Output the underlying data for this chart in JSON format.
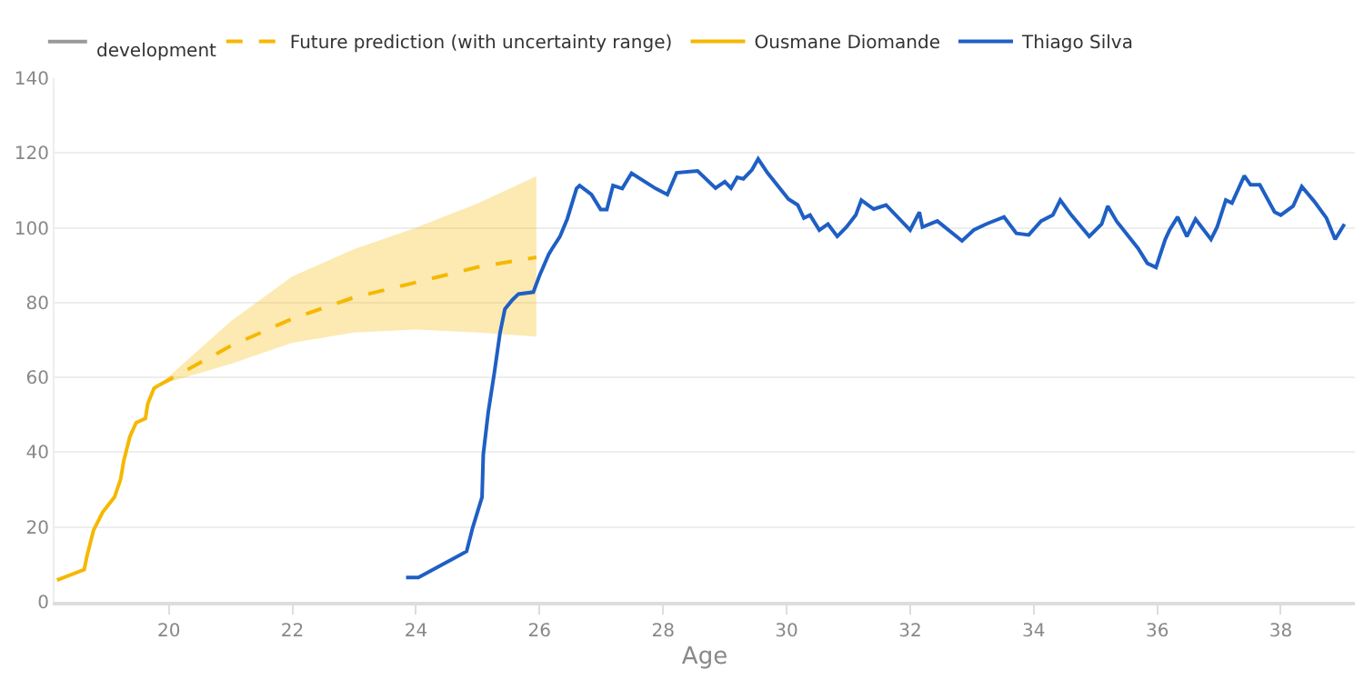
{
  "chart_data": {
    "type": "line",
    "xlabel": "Age",
    "annotations": [
      "development"
    ],
    "xlim": [
      18.15,
      39.2
    ],
    "ylim": [
      0,
      140
    ],
    "xticks": [
      20,
      22,
      24,
      26,
      28,
      30,
      32,
      34,
      36,
      38
    ],
    "yticks": [
      0,
      20,
      40,
      60,
      80,
      100,
      120,
      140
    ],
    "grid": "y",
    "legend": "top left",
    "line_style": "solid",
    "marker": "none",
    "series": [
      {
        "name": "Future prediction (with uncertainty range)",
        "color": "#f5b800",
        "line_style": "dashed",
        "x": [
          19.84,
          21,
          22,
          23,
          24,
          25,
          25.95
        ],
        "values": [
          57.9,
          68.4,
          75.7,
          81.4,
          85.4,
          89.5,
          92.1
        ],
        "lower": [
          57.9,
          63.6,
          69.3,
          72,
          72.8,
          72,
          70.9
        ],
        "upper": [
          57.9,
          75,
          87,
          94.3,
          100,
          106.5,
          113.8
        ]
      },
      {
        "name": "Ousmane Diomande",
        "color": "#f5b800",
        "x": [
          18.19,
          18.63,
          18.68,
          18.78,
          18.93,
          19.12,
          19.22,
          19.27,
          19.37,
          19.47,
          19.62,
          19.66,
          19.76,
          19.84
        ],
        "values": [
          5.8,
          8.6,
          12.6,
          19.1,
          24,
          28,
          32.8,
          37.7,
          44.2,
          47.9,
          49,
          53,
          57.1,
          57.9
        ]
      },
      {
        "name": "Thiago Silva",
        "color": "#1f5fc4",
        "x": [
          23.84,
          24.04,
          24.82,
          24.92,
          25.07,
          25.09,
          25.17,
          25.27,
          25.36,
          25.44,
          25.56,
          25.66,
          25.9,
          26.0,
          26.15,
          26.2,
          26.33,
          26.45,
          26.6,
          26.65,
          26.84,
          26.99,
          27.09,
          27.19,
          27.34,
          27.49,
          27.88,
          28.07,
          28.22,
          28.56,
          28.85,
          29.0,
          29.1,
          29.2,
          29.3,
          29.44,
          29.54,
          29.69,
          30.03,
          30.18,
          30.28,
          30.38,
          30.53,
          30.67,
          30.82,
          30.97,
          31.12,
          31.21,
          31.41,
          31.61,
          32.0,
          32.15,
          32.2,
          32.44,
          32.84,
          33.03,
          33.23,
          33.52,
          33.72,
          33.92,
          34.12,
          34.31,
          34.43,
          34.61,
          34.9,
          35.1,
          35.2,
          35.34,
          35.69,
          35.84,
          35.98,
          36.13,
          36.2,
          36.33,
          36.48,
          36.62,
          36.87,
          36.97,
          37.11,
          37.21,
          37.41,
          37.51,
          37.66,
          37.9,
          38.0,
          38.2,
          38.34,
          38.54,
          38.74,
          38.88,
          39.03
        ],
        "values": [
          6.5,
          6.5,
          13.5,
          19.9,
          28,
          39.4,
          50.7,
          61.3,
          71.8,
          78.3,
          80.7,
          82.3,
          82.8,
          87.2,
          92.9,
          94.3,
          97.6,
          102.4,
          110.5,
          111.3,
          108.9,
          104.9,
          104.9,
          111.3,
          110.5,
          114.6,
          110.5,
          108.9,
          114.7,
          115.2,
          110.6,
          112.3,
          110.6,
          113.5,
          113.1,
          115.5,
          118.4,
          114.7,
          107.7,
          106.1,
          102.6,
          103.4,
          99.4,
          101,
          97.7,
          100.2,
          103.4,
          107.4,
          105,
          106.1,
          99.4,
          104.2,
          100.2,
          101.8,
          96.5,
          99.4,
          101,
          102.9,
          98.5,
          98.1,
          101.8,
          103.4,
          107.4,
          103.4,
          97.7,
          101,
          105.8,
          101.8,
          94.5,
          90.5,
          89.4,
          96.9,
          99.4,
          102.9,
          97.7,
          102.3,
          96.9,
          100.2,
          107.4,
          106.6,
          113.9,
          111.5,
          111.5,
          104.2,
          103.4,
          105.8,
          111,
          107.1,
          102.6,
          96.9,
          101
        ]
      }
    ]
  }
}
